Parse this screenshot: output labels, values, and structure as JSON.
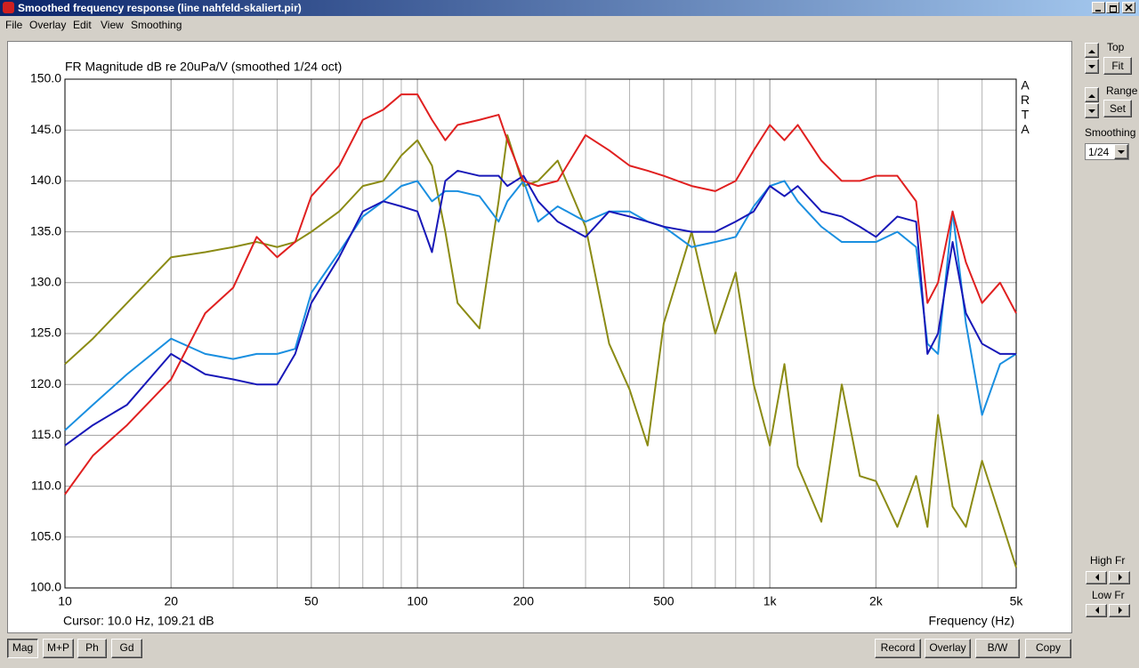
{
  "window": {
    "title": "Smoothed frequency response (line nahfeld-skaliert.pir)",
    "menu": [
      "File",
      "Overlay",
      "Edit",
      "View",
      "Smoothing"
    ]
  },
  "chart_data": {
    "type": "line",
    "title": "FR Magnitude dB re 20uPa/V (smoothed 1/24 oct)",
    "xlabel": "Frequency (Hz)",
    "cursor": "Cursor: 10.0 Hz, 109.21 dB",
    "watermark": [
      "A",
      "R",
      "T",
      "A"
    ],
    "xscale": "log",
    "grid": true,
    "xlim": [
      10,
      5000
    ],
    "ylim": [
      100,
      150
    ],
    "xticks": [
      10,
      20,
      50,
      100,
      200,
      500,
      {
        "value": 1000,
        "label": "1k"
      },
      {
        "value": 2000,
        "label": "2k"
      },
      {
        "value": 5000,
        "label": "5k"
      }
    ],
    "yticks": [
      {
        "value": 100,
        "label": "100.0"
      },
      {
        "value": 105,
        "label": "105.0"
      },
      {
        "value": 110,
        "label": "110.0"
      },
      {
        "value": 115,
        "label": "115.0"
      },
      {
        "value": 120,
        "label": "120.0"
      },
      {
        "value": 125,
        "label": "125.0"
      },
      {
        "value": 130,
        "label": "130.0"
      },
      {
        "value": 135,
        "label": "135.0"
      },
      {
        "value": 140,
        "label": "140.0"
      },
      {
        "value": 145,
        "label": "145.0"
      },
      {
        "value": 150,
        "label": "150.0"
      }
    ],
    "x": [
      10,
      12,
      15,
      20,
      25,
      30,
      35,
      40,
      45,
      50,
      60,
      70,
      80,
      90,
      100,
      110,
      120,
      130,
      150,
      170,
      180,
      200,
      220,
      250,
      300,
      350,
      400,
      450,
      500,
      600,
      700,
      800,
      900,
      1000,
      1100,
      1200,
      1400,
      1600,
      1800,
      2000,
      2300,
      2600,
      2800,
      3000,
      3300,
      3600,
      4000,
      4500,
      5000
    ],
    "series": [
      {
        "color": "#8b8b14",
        "values": [
          122,
          124.5,
          128,
          132.5,
          133,
          133.5,
          134,
          133.5,
          134,
          135,
          137,
          139.5,
          140,
          142.5,
          144,
          141.5,
          135,
          128,
          125.5,
          138,
          144.5,
          139.5,
          140,
          142,
          135.5,
          124,
          119.5,
          114,
          126,
          135,
          125,
          131,
          120,
          114,
          122,
          112,
          106.5,
          120,
          111,
          110.5,
          106,
          111,
          106,
          117,
          108,
          106,
          112.5,
          107,
          102
        ]
      },
      {
        "color": "#1a8fe0",
        "values": [
          115.5,
          118,
          121,
          124.5,
          123,
          122.5,
          123,
          123,
          123.5,
          129,
          133,
          136.5,
          138,
          139.5,
          140,
          138,
          139,
          139,
          138.5,
          136,
          138,
          140,
          136,
          137.5,
          136,
          137,
          137,
          136,
          135.5,
          133.5,
          134,
          134.5,
          137.5,
          139.5,
          140,
          138,
          135.5,
          134,
          134,
          134,
          135,
          133.5,
          124,
          123,
          137,
          126,
          117,
          122,
          123
        ]
      },
      {
        "color": "#1818b8",
        "values": [
          114,
          116,
          118,
          123,
          121,
          120.5,
          120,
          120,
          123,
          128,
          132.5,
          137,
          138,
          137.5,
          137,
          133,
          140,
          141,
          140.5,
          140.5,
          139.5,
          140.5,
          138,
          136,
          134.5,
          137,
          136.5,
          136,
          135.5,
          135,
          135,
          136,
          137,
          139.5,
          138.5,
          139.5,
          137,
          136.5,
          135.5,
          134.5,
          136.5,
          136,
          123,
          125,
          134,
          127,
          124,
          123,
          123
        ]
      },
      {
        "color": "#e02020",
        "values": [
          109.2,
          113,
          116,
          120.5,
          127,
          129.5,
          134.5,
          132.5,
          134,
          138.5,
          141.5,
          146,
          147,
          148.5,
          148.5,
          146,
          144,
          145.5,
          146,
          146.5,
          144,
          140,
          139.5,
          140,
          144.5,
          143,
          141.5,
          141,
          140.5,
          139.5,
          139,
          140,
          143,
          145.5,
          144,
          145.5,
          142,
          140,
          140,
          140.5,
          140.5,
          138,
          128,
          130,
          137,
          132,
          128,
          130,
          127
        ]
      }
    ]
  },
  "side_panel": {
    "top_label": "Top",
    "fit": "Fit",
    "range_label": "Range",
    "set": "Set",
    "smoothing_label": "Smoothing",
    "smoothing_value": "1/24",
    "high_fr": "High Fr",
    "low_fr": "Low Fr"
  },
  "bottom_buttons": {
    "left": [
      "Mag",
      "M+P",
      "Ph",
      "Gd"
    ],
    "right": [
      "Record",
      "Overlay",
      "B/W",
      "Copy"
    ]
  }
}
